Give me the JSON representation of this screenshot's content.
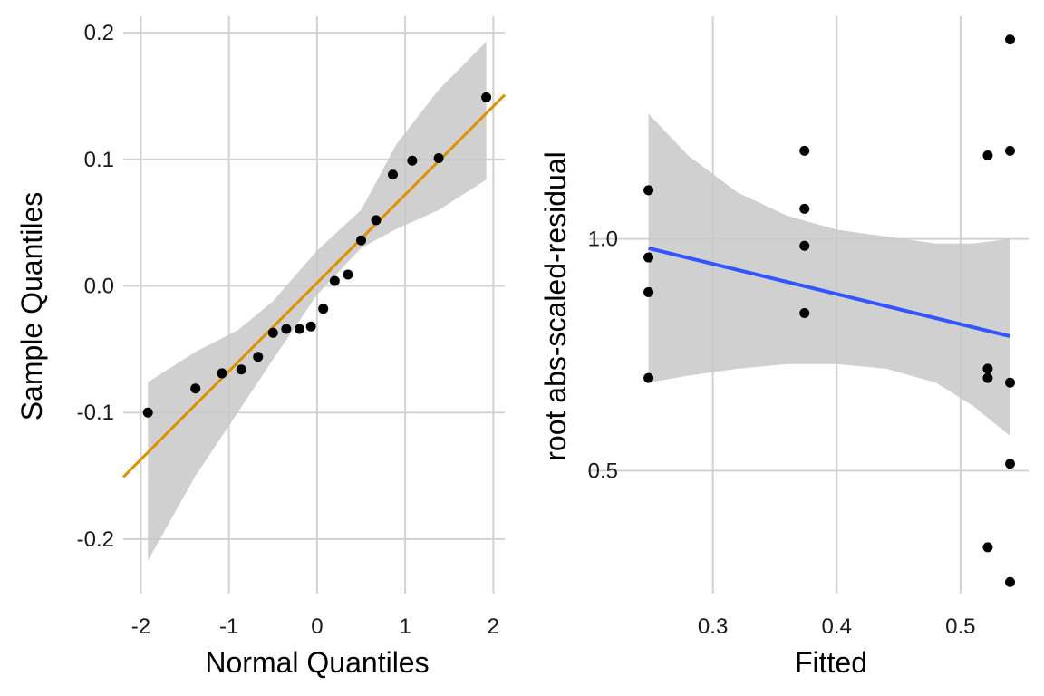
{
  "chart_data": [
    {
      "type": "scatter",
      "panel": "qq",
      "xlabel": "Normal Quantiles",
      "ylabel": "Sample Quantiles",
      "xlim": [
        -2.2,
        2.13
      ],
      "ylim": [
        -0.243,
        0.213
      ],
      "xticks": [
        -2,
        -1,
        0,
        1,
        2
      ],
      "xtick_labels": [
        "-2",
        "-1",
        "0",
        "1",
        "2"
      ],
      "yticks": [
        -0.2,
        -0.1,
        0.0,
        0.1,
        0.2
      ],
      "ytick_labels": [
        "-0.2",
        "-0.1",
        "0.0",
        "0.1",
        "0.2"
      ],
      "grid": true,
      "colors": {
        "points": "#000000",
        "line": "#e08f00",
        "band": "#c8c8c8"
      },
      "points": {
        "x": [
          -1.92,
          -1.38,
          -1.08,
          -0.86,
          -0.67,
          -0.5,
          -0.35,
          -0.2,
          -0.07,
          0.07,
          0.2,
          0.35,
          0.5,
          0.67,
          0.86,
          1.08,
          1.38,
          1.92
        ],
        "y": [
          -0.1,
          -0.081,
          -0.069,
          -0.066,
          -0.056,
          -0.037,
          -0.034,
          -0.034,
          -0.032,
          -0.018,
          0.004,
          0.009,
          0.036,
          0.052,
          0.088,
          0.099,
          0.101,
          0.149
        ]
      },
      "reference_line": {
        "x": [
          -2.2,
          2.13
        ],
        "y": [
          -0.151,
          0.151
        ]
      },
      "confidence_band": {
        "x": [
          -1.92,
          -1.38,
          -0.9,
          -0.5,
          0.0,
          0.5,
          0.9,
          1.38,
          1.92
        ],
        "lower": [
          -0.217,
          -0.15,
          -0.1,
          -0.058,
          -0.007,
          0.03,
          0.045,
          0.06,
          0.084
        ],
        "upper": [
          -0.076,
          -0.052,
          -0.035,
          -0.012,
          0.028,
          0.06,
          0.112,
          0.155,
          0.193
        ]
      }
    },
    {
      "type": "scatter",
      "panel": "scale-location",
      "xlabel": "Fitted",
      "ylabel": "root abs-scaled-residual",
      "xlim": [
        0.2,
        0.555
      ],
      "ylim": [
        0.235,
        1.48
      ],
      "xticks": [
        0.3,
        0.4,
        0.5
      ],
      "xtick_labels": [
        "0.3",
        "0.4",
        "0.5"
      ],
      "yticks": [
        0.5,
        1.0
      ],
      "ytick_labels": [
        "0.5",
        "1.0"
      ],
      "grid": true,
      "colors": {
        "points": "#000000",
        "line": "#3355ff",
        "band": "#c8c8c8"
      },
      "points": {
        "x": [
          0.248,
          0.248,
          0.248,
          0.248,
          0.374,
          0.374,
          0.374,
          0.374,
          0.522,
          0.522,
          0.522,
          0.522,
          0.54,
          0.54,
          0.54,
          0.54,
          0.54
        ],
        "y": [
          1.105,
          0.96,
          0.885,
          0.7,
          1.19,
          1.065,
          0.985,
          0.84,
          1.18,
          0.72,
          0.7,
          0.335,
          1.43,
          1.19,
          0.69,
          0.515,
          0.26
        ]
      },
      "trend_line": {
        "x": [
          0.248,
          0.54
        ],
        "y": [
          0.98,
          0.79
        ]
      },
      "confidence_band": {
        "x": [
          0.248,
          0.28,
          0.32,
          0.36,
          0.4,
          0.44,
          0.48,
          0.51,
          0.54
        ],
        "lower": [
          0.69,
          0.705,
          0.72,
          0.73,
          0.73,
          0.72,
          0.69,
          0.64,
          0.575
        ],
        "upper": [
          1.27,
          1.18,
          1.1,
          1.05,
          1.02,
          1.005,
          0.99,
          0.99,
          1.0
        ]
      }
    }
  ]
}
